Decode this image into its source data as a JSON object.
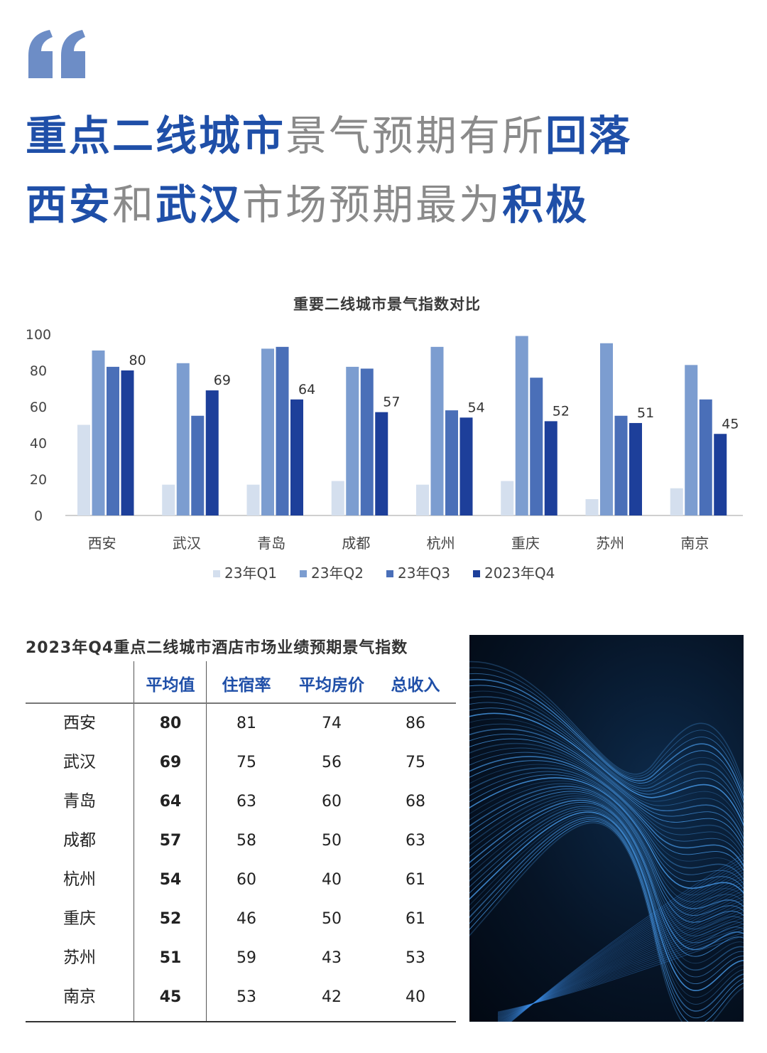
{
  "headline": {
    "line1": [
      {
        "text": "重点二线城市",
        "strong": true
      },
      {
        "text": "景气预期有所",
        "strong": false
      },
      {
        "text": "回落",
        "strong": true
      }
    ],
    "line2": [
      {
        "text": "西安",
        "strong": true
      },
      {
        "text": "和",
        "strong": false
      },
      {
        "text": "武汉",
        "strong": true
      },
      {
        "text": "市场预期最为",
        "strong": false
      },
      {
        "text": "积极",
        "strong": true
      }
    ]
  },
  "colors": {
    "accent": "#1f4fa8",
    "q1": "#d4dfee",
    "q2": "#7c9dd0",
    "q3": "#4a6fb8",
    "q4": "#1d3f9a",
    "quote": "#6d8dc6"
  },
  "chart_data": {
    "type": "bar",
    "title": "重要二线城市景气指数对比",
    "categories": [
      "西安",
      "武汉",
      "青岛",
      "成都",
      "杭州",
      "重庆",
      "苏州",
      "南京"
    ],
    "ylim": [
      0,
      100
    ],
    "yticks": [
      0,
      20,
      40,
      60,
      80,
      100
    ],
    "legend_position": "bottom",
    "series": [
      {
        "name": "23年Q1",
        "values": [
          50,
          17,
          17,
          19,
          17,
          19,
          9,
          15
        ]
      },
      {
        "name": "23年Q2",
        "values": [
          91,
          84,
          92,
          82,
          93,
          99,
          95,
          83
        ]
      },
      {
        "name": "23年Q3",
        "values": [
          82,
          55,
          93,
          81,
          58,
          76,
          55,
          64
        ]
      },
      {
        "name": "2023年Q4",
        "values": [
          80,
          69,
          64,
          57,
          54,
          52,
          51,
          45
        ],
        "data_labels": true
      }
    ]
  },
  "table": {
    "title": "2023年Q4重点二线城市酒店市场业绩预期景气指数",
    "headers": [
      "平均值",
      "住宿率",
      "平均房价",
      "总收入"
    ],
    "rows": [
      {
        "city": "西安",
        "avg": "80",
        "occ": "81",
        "adr": "74",
        "rev": "86"
      },
      {
        "city": "武汉",
        "avg": "69",
        "occ": "75",
        "adr": "56",
        "rev": "75"
      },
      {
        "city": "青岛",
        "avg": "64",
        "occ": "63",
        "adr": "60",
        "rev": "68"
      },
      {
        "city": "成都",
        "avg": "57",
        "occ": "58",
        "adr": "50",
        "rev": "63"
      },
      {
        "city": "杭州",
        "avg": "54",
        "occ": "60",
        "adr": "40",
        "rev": "61"
      },
      {
        "city": "重庆",
        "avg": "52",
        "occ": "46",
        "adr": "50",
        "rev": "61"
      },
      {
        "city": "苏州",
        "avg": "51",
        "occ": "59",
        "adr": "43",
        "rev": "53"
      },
      {
        "city": "南京",
        "avg": "45",
        "occ": "53",
        "adr": "42",
        "rev": "40"
      }
    ]
  }
}
